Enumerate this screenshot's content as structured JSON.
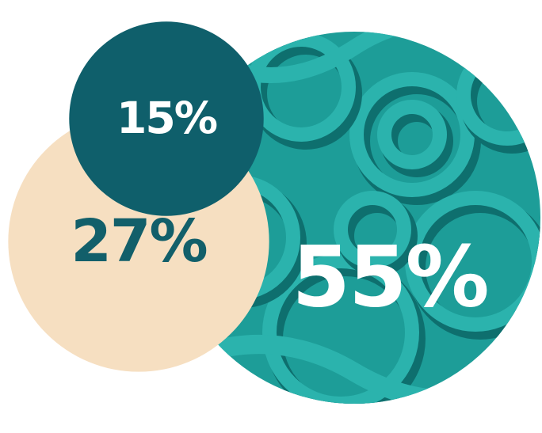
{
  "chart_data": {
    "type": "bubble",
    "values": [
      55,
      27,
      15
    ],
    "value_labels": [
      "55%",
      "27%",
      "15%"
    ],
    "colors": [
      "#1d9d98",
      "#f6dfc1",
      "#0f5f6b"
    ],
    "label_colors": [
      "#ffffff",
      "#125f6a",
      "#ffffff"
    ]
  }
}
